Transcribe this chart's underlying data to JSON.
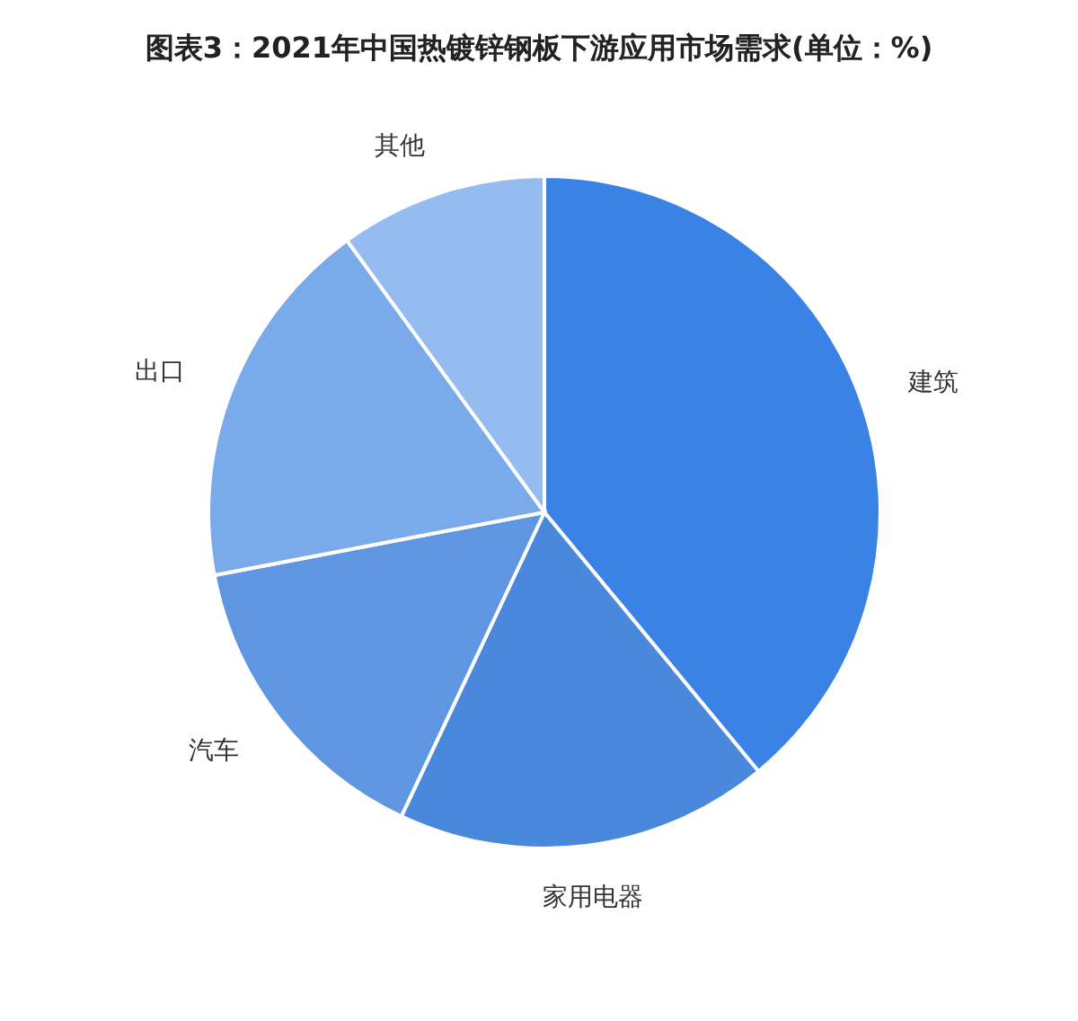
{
  "chart_data": {
    "type": "pie",
    "title": "图表3：2021年中国热镀锌钢板下游应用市场需求(单位：%)",
    "categories": [
      "建筑",
      "家用电器",
      "汽车",
      "出口",
      "其他"
    ],
    "values": [
      39,
      18,
      15,
      18,
      10
    ],
    "colors": [
      "#3b82e6",
      "#4a88dc",
      "#5f96e2",
      "#7aaaea",
      "#94bcf1"
    ]
  }
}
